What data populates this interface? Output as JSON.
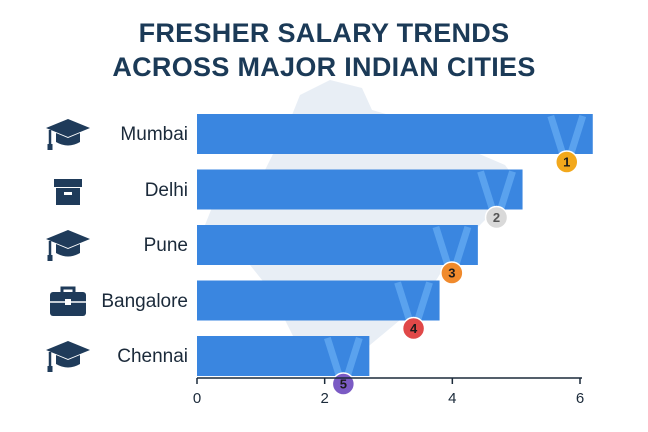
{
  "title_line1": "FRESHER SALARY TRENDS",
  "title_line2": "ACROSS MAJOR INDIAN CITIES",
  "chart_data": {
    "type": "bar",
    "orientation": "horizontal",
    "title": "FRESHER SALARY TRENDS ACROSS MAJOR INDIAN CITIES",
    "categories": [
      "Mumbai",
      "Delhi",
      "Pune",
      "Bangalore",
      "Chennai"
    ],
    "values": [
      6.2,
      5.1,
      4.4,
      3.8,
      2.7
    ],
    "ranks": [
      "1",
      "2",
      "3",
      "4",
      "5"
    ],
    "icons": [
      "graduation-cap-icon",
      "box-icon",
      "graduation-cap-icon",
      "briefcase-icon",
      "graduation-cap-icon"
    ],
    "xlim": [
      0,
      6
    ],
    "xticks": [
      0,
      2,
      4,
      6
    ],
    "xlabel": "",
    "ylabel": "",
    "grid": false,
    "legend": "none",
    "colors": {
      "bar": "#3a86e0",
      "axis": "#1b2a3a",
      "title": "#1b3a57",
      "icon": "#1f3b5a",
      "map": "#e8eef5",
      "medals": [
        "#f2a81c",
        "#d9d9d9",
        "#f08a2c",
        "#e04848",
        "#7b5bc4"
      ]
    }
  }
}
